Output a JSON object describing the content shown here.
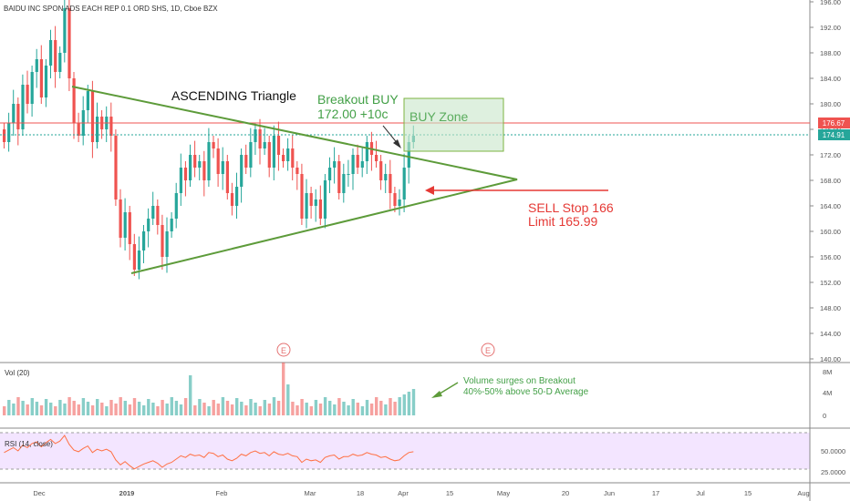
{
  "chart": {
    "symbol_title": "BAIDU INC SPON ADS EACH REP 0.1 ORD SHS, 1D, Cboe BZX",
    "price_axis_labels": [
      "196.00",
      "192.00",
      "188.00",
      "184.00",
      "180.00",
      "176.00",
      "172.00",
      "168.00",
      "164.00",
      "160.00",
      "156.00",
      "152.00",
      "148.00",
      "144.00",
      "140.00"
    ],
    "price_badges": {
      "red": "176.67",
      "green": "174.91"
    },
    "time_axis_labels": [
      "Dec",
      "2019",
      "Feb",
      "Mar",
      "18",
      "Apr",
      "15",
      "May",
      "20",
      "Jun",
      "17",
      "Jul",
      "15",
      "Aug"
    ],
    "earnings_marker": "E"
  },
  "annotations": {
    "pattern_title": "ASCENDING Triangle",
    "breakout_line1": "Breakout BUY",
    "breakout_line2": "172.00 +10c",
    "buy_zone": "BUY Zone",
    "sell_line1": "SELL Stop 166",
    "sell_line2": "Limit 165.99",
    "volume_note_line1": "Volume surges on Breakout",
    "volume_note_line2": "40%-50% above 50-D Average"
  },
  "volume_pane": {
    "title": "Vol (20)",
    "axis_labels": [
      "8M",
      "4M",
      "0"
    ]
  },
  "rsi_pane": {
    "title": "RSI (14, close)",
    "axis_labels": [
      "50.0000",
      "25.0000"
    ]
  },
  "colors": {
    "up": "#26a69a",
    "down": "#ef5350",
    "triangle": "#5d9b3a",
    "buy_zone_fill": "#c8e6c9",
    "sell_arrow": "#e53935",
    "rsi_fill": "#f3e5ff",
    "rsi_line": "#ff7043",
    "badge_red": "#ef5350",
    "badge_green": "#26a69a"
  },
  "chart_data": {
    "type": "candlestick",
    "title": "BAIDU INC SPON ADS EACH REP 0.1 ORD SHS, 1D, Cboe BZX",
    "ylim": [
      140,
      196
    ],
    "categories": [
      "Dec",
      "2019",
      "Feb",
      "Mar",
      "18",
      "Apr",
      "15",
      "May",
      "20",
      "Jun",
      "17",
      "Jul",
      "15",
      "Aug"
    ],
    "last_price": 174.91,
    "level_line": 176.67,
    "series": [
      {
        "name": "Vol (20)",
        "axis": [
          "8M",
          "4M",
          "0"
        ]
      },
      {
        "name": "RSI (14, close)",
        "axis": [
          50,
          25
        ]
      }
    ]
  }
}
